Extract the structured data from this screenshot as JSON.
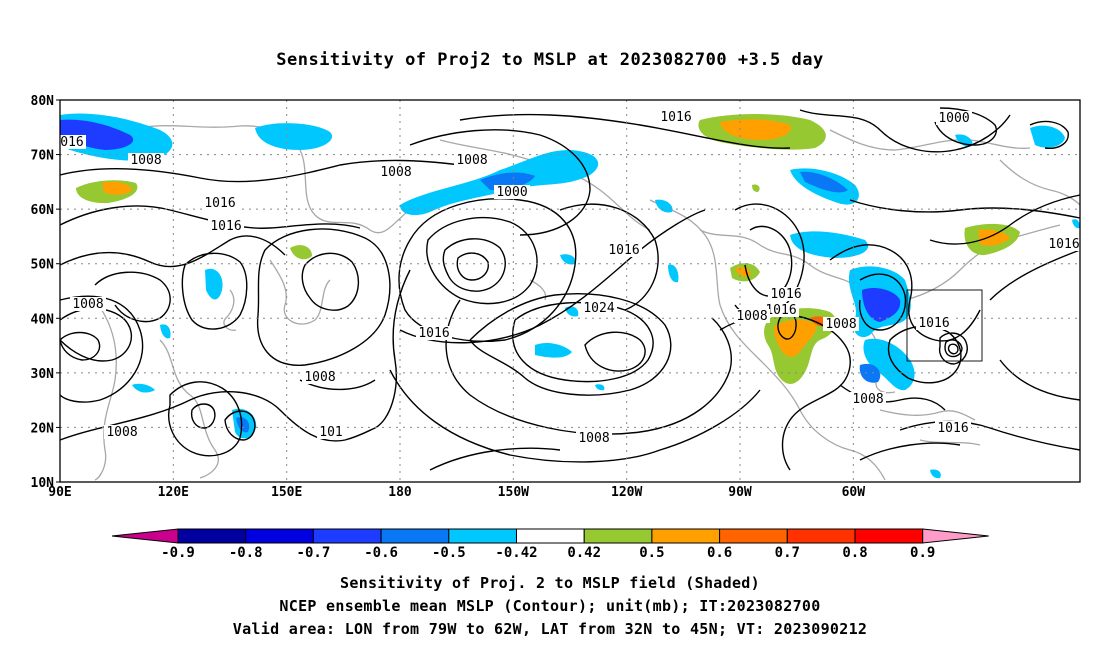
{
  "title": "Sensitivity of Proj2 to MSLP at 2023082700 +3.5 day",
  "map": {
    "lat_labels": [
      "80N",
      "70N",
      "60N",
      "50N",
      "40N",
      "30N",
      "20N",
      "10N"
    ],
    "lon_labels": [
      "90E",
      "120E",
      "150E",
      "180",
      "150W",
      "120W",
      "90W",
      "60W"
    ],
    "contour_labels": [
      "016",
      "1008",
      "1008",
      "1000",
      "1016",
      "1000",
      "1008",
      "1016",
      "1016",
      "1016",
      "1024",
      "1008",
      "1016",
      "1008",
      "1016",
      "1016",
      "1008",
      "1008",
      "1016",
      "1008",
      "1008",
      "101",
      "1016",
      "1008",
      "1016",
      "1016"
    ],
    "valid_area": {
      "lon": [
        "79W",
        "62W"
      ],
      "lat": [
        "32N",
        "45N"
      ]
    }
  },
  "colorbar": {
    "labels": [
      "-0.9",
      "-0.8",
      "-0.7",
      "-0.6",
      "-0.5",
      "-0.42",
      "0.42",
      "0.5",
      "0.6",
      "0.7",
      "0.8",
      "0.9"
    ],
    "colors": [
      "#c8008c",
      "#0000a0",
      "#0000e0",
      "#1e3cff",
      "#0a78f5",
      "#00c8ff",
      "#ffffff",
      "#96c832",
      "#ffa000",
      "#ff6400",
      "#ff3200",
      "#ff0000",
      "#ff9bc8"
    ]
  },
  "caption": {
    "line1": "Sensitivity of Proj. 2 to MSLP field (Shaded)",
    "line2": "NCEP ensemble mean MSLP (Contour); unit(mb); IT:2023082700",
    "line3": "Valid area: LON from 79W to 62W, LAT from 32N to 45N; VT: 2023090212"
  }
}
